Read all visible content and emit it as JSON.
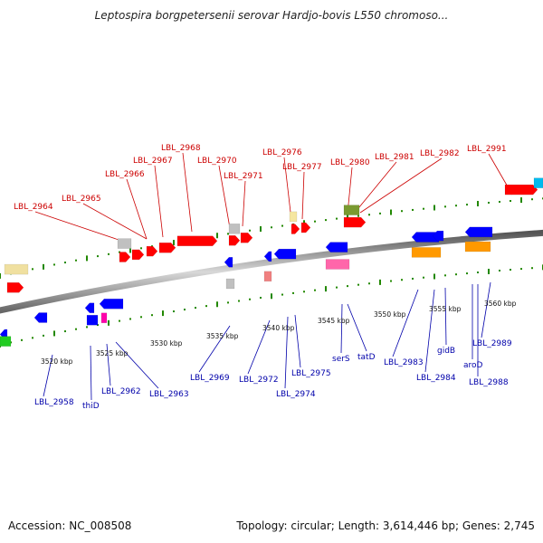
{
  "title": "Leptospira borgpetersenii serovar Hardjo-bovis L550 chromoso...",
  "footer": {
    "accession": "Accession: NC_008508",
    "summary": "Topology: circular; Length: 3,614,446 bp; Genes: 2,745"
  },
  "colors": {
    "forward_label": "#cc0000",
    "reverse_label": "#0000aa",
    "forward_gene": "#ff0000",
    "reverse_gene": "#0000ff",
    "tick": "#228800",
    "axis": "#888888"
  },
  "kbp_ticks": [
    "3520 kbp",
    "3525 kbp",
    "3530 kbp",
    "3535 kbp",
    "3540 kbp",
    "3545 kbp",
    "3550 kbp",
    "3555 kbp",
    "3560 kbp"
  ],
  "forward_labels": [
    "LBL_2964",
    "LBL_2965",
    "LBL_2966",
    "LBL_2967",
    "LBL_2968",
    "LBL_2970",
    "LBL_2971",
    "LBL_2976",
    "LBL_2977",
    "LBL_2980",
    "LBL_2981",
    "LBL_2982",
    "LBL_2991"
  ],
  "reverse_labels": [
    "LBL_2958",
    "thiD",
    "LBL_2962",
    "LBL_2963",
    "LBL_2969",
    "LBL_2972",
    "LBL_2974",
    "LBL_2975",
    "serS",
    "tatD",
    "LBL_2983",
    "LBL_2984",
    "gidB",
    "aroD",
    "LBL_2988",
    "LBL_2989"
  ]
}
